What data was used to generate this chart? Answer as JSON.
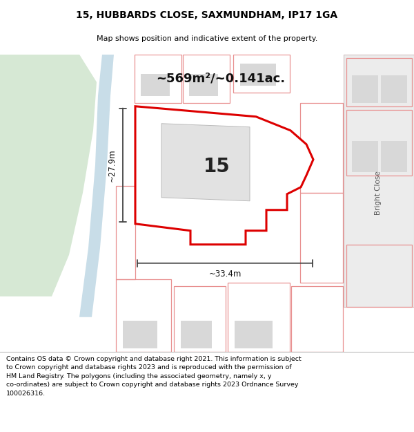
{
  "title_line1": "15, HUBBARDS CLOSE, SAXMUNDHAM, IP17 1GA",
  "title_line2": "Map shows position and indicative extent of the property.",
  "area_text": "~569m²/~0.141ac.",
  "label_15": "15",
  "dim_width": "~33.4m",
  "dim_height": "~27.9m",
  "footer_text": "Contains OS data © Crown copyright and database right 2021. This information is subject to Crown copyright and database rights 2023 and is reproduced with the permission of HM Land Registry. The polygons (including the associated geometry, namely x, y co-ordinates) are subject to Crown copyright and database rights 2023 Ordnance Survey 100026316.",
  "bg_color": "#ffffff",
  "map_bg": "#f0f0f0",
  "green_area_color": "#d6e8d4",
  "road_color": "#c8dde8",
  "building_fill": "#d8d8d8",
  "boundary_color": "#e89090",
  "highlight_color": "#dd0000",
  "highlight_fill": "#ffffff",
  "dim_color": "#444444",
  "right_label": "Bright Close",
  "right_bg": "#e8e8e8"
}
